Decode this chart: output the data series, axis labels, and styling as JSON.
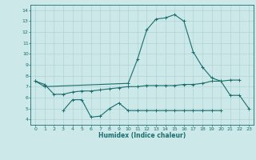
{
  "xlabel": "Humidex (Indice chaleur)",
  "ylabel": "",
  "bg_color": "#cce8e8",
  "grid_color": "#aacfcf",
  "line_color": "#1a6e6e",
  "x_values": [
    0,
    1,
    2,
    3,
    4,
    5,
    6,
    7,
    8,
    9,
    10,
    11,
    12,
    13,
    14,
    15,
    16,
    17,
    18,
    19,
    20,
    21,
    22,
    23
  ],
  "line1": [
    7.5,
    7.0,
    null,
    null,
    null,
    null,
    null,
    null,
    null,
    null,
    7.3,
    9.5,
    12.2,
    13.2,
    13.3,
    13.6,
    13.0,
    10.2,
    8.8,
    7.8,
    7.5,
    6.2,
    6.2,
    5.0
  ],
  "line2_full": [
    7.5,
    7.2,
    6.3,
    6.3,
    6.5,
    6.6,
    6.6,
    6.7,
    6.8,
    6.9,
    7.0,
    7.0,
    7.1,
    7.1,
    7.1,
    7.1,
    7.2,
    7.2,
    7.3,
    7.5,
    7.5,
    7.6,
    7.6,
    null
  ],
  "line3_full": [
    null,
    null,
    null,
    4.8,
    5.8,
    5.8,
    4.2,
    4.3,
    5.0,
    5.5,
    4.8,
    4.8,
    4.8,
    4.8,
    4.8,
    4.8,
    4.8,
    4.8,
    4.8,
    4.8,
    4.8,
    null,
    null,
    null
  ],
  "ylim": [
    3.5,
    14.5
  ],
  "yticks": [
    4,
    5,
    6,
    7,
    8,
    9,
    10,
    11,
    12,
    13,
    14
  ],
  "xticks": [
    0,
    1,
    2,
    3,
    4,
    5,
    6,
    7,
    8,
    9,
    10,
    11,
    12,
    13,
    14,
    15,
    16,
    17,
    18,
    19,
    20,
    21,
    22,
    23
  ],
  "figsize": [
    3.2,
    2.0
  ],
  "dpi": 100
}
